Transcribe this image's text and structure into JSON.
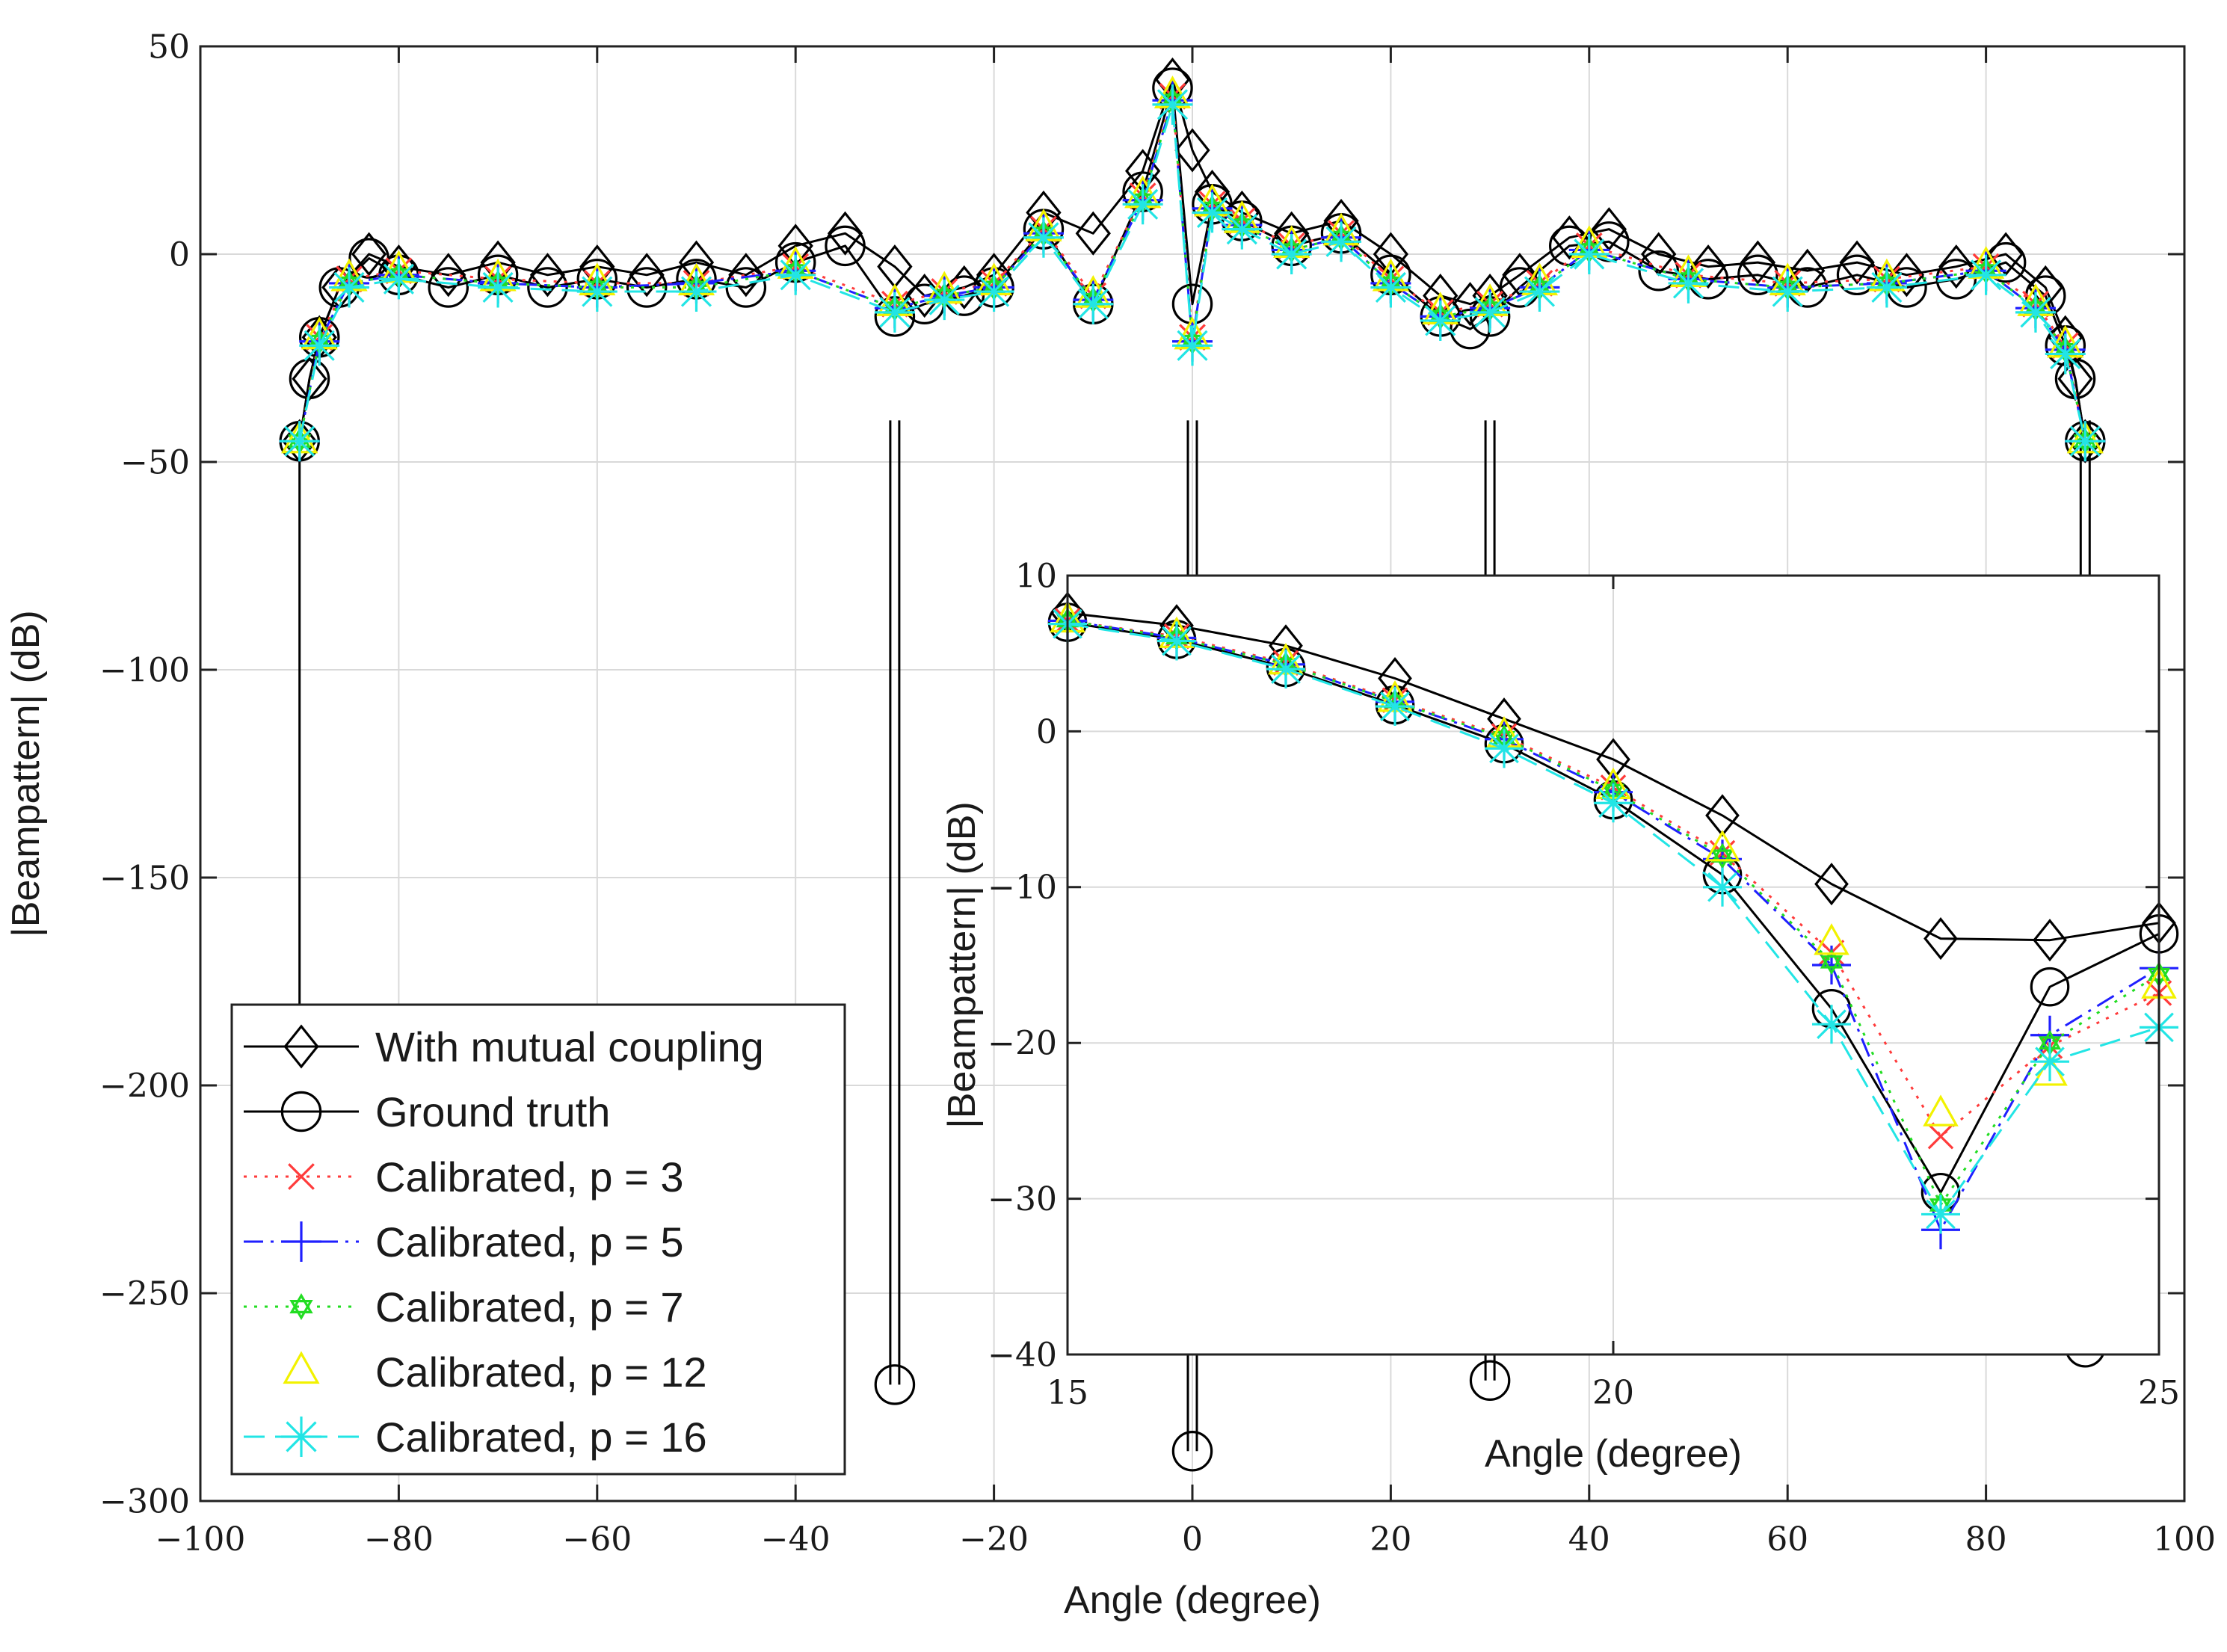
{
  "chart_data": [
    {
      "type": "line",
      "xlabel": "Angle (degree)",
      "ylabel": "|Beampattern| (dB)",
      "xlim": [
        -100,
        100
      ],
      "ylim": [
        -300,
        50
      ],
      "xticks": [
        -100,
        -80,
        -60,
        -40,
        -20,
        0,
        20,
        40,
        60,
        80,
        100
      ],
      "yticks": [
        -300,
        -250,
        -200,
        -150,
        -100,
        -50,
        0,
        50
      ],
      "xtick_labels": [
        "−100",
        "−80",
        "−60",
        "−40",
        "−20",
        "0",
        "20",
        "40",
        "60",
        "80",
        "100"
      ],
      "ytick_labels": [
        "−300",
        "−250",
        "−200",
        "−150",
        "−100",
        "−50",
        "0",
        "50"
      ],
      "grid": true,
      "legend_position": "bottom-left",
      "nulls": [
        {
          "angle": -30,
          "ground_truth_db": -272
        },
        {
          "angle": 0,
          "ground_truth_db": -288
        },
        {
          "angle": 30,
          "ground_truth_db": -271
        },
        {
          "angle": 90,
          "ground_truth_db": -263
        }
      ],
      "series": [
        {
          "name": "With mutual coupling",
          "color": "#000000",
          "marker": "diamond",
          "line": "solid",
          "x": [
            -90,
            -89,
            -88,
            -86,
            -83,
            -80,
            -75,
            -70,
            -65,
            -60,
            -55,
            -50,
            -45,
            -40,
            -35,
            -30,
            -27,
            -23,
            -20,
            -15,
            -10,
            -5,
            -2,
            0,
            2,
            5,
            10,
            15,
            20,
            25,
            28,
            30,
            33,
            38,
            42,
            47,
            52,
            57,
            62,
            67,
            72,
            77,
            82,
            86,
            88,
            89,
            90
          ],
          "y": [
            -45,
            -30,
            -20,
            -8,
            0,
            -3,
            -5,
            -2,
            -5,
            -3,
            -5,
            -2,
            -5,
            2,
            5,
            -3,
            -10,
            -8,
            -5,
            10,
            5,
            20,
            42,
            25,
            15,
            10,
            5,
            8,
            0,
            -10,
            -12,
            -10,
            -5,
            4,
            6,
            0,
            -3,
            -2,
            -4,
            -2,
            -5,
            -3,
            0,
            -8,
            -20,
            -30,
            -45
          ]
        },
        {
          "name": "Ground truth",
          "color": "#000000",
          "marker": "circle",
          "line": "solid",
          "x": [
            -90,
            -89,
            -88,
            -86,
            -83,
            -80,
            -75,
            -70,
            -65,
            -60,
            -55,
            -50,
            -45,
            -40,
            -35,
            -30,
            -27,
            -23,
            -20,
            -15,
            -10,
            -5,
            -2,
            0,
            2,
            5,
            10,
            15,
            20,
            25,
            28,
            30,
            33,
            38,
            42,
            47,
            52,
            57,
            62,
            67,
            72,
            77,
            82,
            86,
            88,
            89,
            90
          ],
          "y": [
            -45,
            -30,
            -20,
            -8,
            -1,
            -5,
            -8,
            -5,
            -8,
            -6,
            -8,
            -6,
            -8,
            -2,
            2,
            -15,
            -12,
            -10,
            -8,
            6,
            -12,
            15,
            40,
            -12,
            12,
            8,
            2,
            5,
            -5,
            -15,
            -18,
            -15,
            -8,
            2,
            3,
            -4,
            -6,
            -5,
            -8,
            -5,
            -8,
            -6,
            -2,
            -10,
            -22,
            -30,
            -45
          ]
        },
        {
          "name": "Calibrated, p = 3",
          "color": "#ff3b3b",
          "marker": "x",
          "line": "dotted",
          "x": [
            -90,
            -88,
            -85,
            -80,
            -70,
            -60,
            -50,
            -40,
            -30,
            -25,
            -20,
            -15,
            -10,
            -5,
            -2,
            0,
            2,
            5,
            10,
            15,
            20,
            25,
            30,
            35,
            40,
            50,
            60,
            70,
            80,
            85,
            88,
            90
          ],
          "y": [
            -45,
            -20,
            -6,
            -4,
            -6,
            -7,
            -7,
            -3,
            -12,
            -9,
            -7,
            6,
            -10,
            14,
            38,
            -20,
            12,
            8,
            2,
            5,
            -6,
            -14,
            -12,
            -7,
            2,
            -5,
            -7,
            -6,
            -3,
            -12,
            -22,
            -45
          ]
        },
        {
          "name": "Calibrated, p = 5",
          "color": "#1f1fff",
          "marker": "plus",
          "line": "dashdot",
          "x": [
            -90,
            -88,
            -85,
            -80,
            -70,
            -60,
            -50,
            -40,
            -30,
            -25,
            -20,
            -15,
            -10,
            -5,
            -2,
            0,
            2,
            5,
            10,
            15,
            20,
            25,
            30,
            35,
            40,
            50,
            60,
            70,
            80,
            85,
            88,
            90
          ],
          "y": [
            -45,
            -21,
            -7,
            -5,
            -7,
            -8,
            -7,
            -4,
            -13,
            -10,
            -8,
            5,
            -11,
            13,
            37,
            -21,
            11,
            7,
            1,
            4,
            -7,
            -15,
            -13,
            -8,
            1,
            -6,
            -8,
            -7,
            -4,
            -13,
            -23,
            -45
          ]
        },
        {
          "name": "Calibrated, p = 7",
          "color": "#22dd22",
          "marker": "hexagram",
          "line": "dotted",
          "x": [
            -90,
            -88,
            -85,
            -80,
            -70,
            -60,
            -50,
            -40,
            -30,
            -25,
            -20,
            -15,
            -10,
            -5,
            -2,
            0,
            2,
            5,
            10,
            15,
            20,
            25,
            30,
            35,
            40,
            50,
            60,
            70,
            80,
            85,
            88,
            90
          ],
          "y": [
            -45,
            -21,
            -7,
            -5,
            -7,
            -8,
            -8,
            -4,
            -13,
            -10,
            -8,
            5,
            -11,
            13,
            37,
            -21,
            11,
            7,
            1,
            4,
            -7,
            -15,
            -13,
            -8,
            1,
            -6,
            -8,
            -7,
            -4,
            -13,
            -23,
            -45
          ]
        },
        {
          "name": "Calibrated, p = 12",
          "color": "#f2f200",
          "marker": "triangle",
          "line": "none",
          "x": [
            -90,
            -88,
            -85,
            -80,
            -70,
            -60,
            -50,
            -40,
            -30,
            -25,
            -20,
            -15,
            -10,
            -5,
            -2,
            0,
            2,
            5,
            10,
            15,
            20,
            25,
            30,
            35,
            40,
            50,
            60,
            70,
            80,
            85,
            88,
            90
          ],
          "y": [
            -45,
            -20,
            -6,
            -4,
            -6,
            -7,
            -7,
            -3,
            -12,
            -9,
            -7,
            6,
            -10,
            14,
            38,
            -20,
            12,
            8,
            2,
            5,
            -6,
            -14,
            -12,
            -7,
            2,
            -5,
            -7,
            -6,
            -3,
            -12,
            -22,
            -45
          ]
        },
        {
          "name": "Calibrated, p = 16",
          "color": "#22e5e5",
          "marker": "asterisk",
          "line": "dashed",
          "x": [
            -90,
            -88,
            -85,
            -80,
            -70,
            -60,
            -50,
            -40,
            -30,
            -25,
            -20,
            -15,
            -10,
            -5,
            -2,
            0,
            2,
            5,
            10,
            15,
            20,
            25,
            30,
            35,
            40,
            50,
            60,
            70,
            80,
            85,
            88,
            90
          ],
          "y": [
            -45,
            -22,
            -8,
            -6,
            -8,
            -9,
            -9,
            -5,
            -14,
            -11,
            -9,
            4,
            -12,
            12,
            36,
            -22,
            10,
            6,
            0,
            3,
            -8,
            -16,
            -14,
            -9,
            0,
            -7,
            -9,
            -8,
            -5,
            -14,
            -24,
            -45
          ]
        }
      ]
    },
    {
      "type": "line",
      "inset": true,
      "xlabel": "Angle (degree)",
      "ylabel": "|Beampattern| (dB)",
      "xlim": [
        15,
        25
      ],
      "ylim": [
        -40,
        10
      ],
      "xticks": [
        15,
        20,
        25
      ],
      "yticks": [
        -40,
        -30,
        -20,
        -10,
        0,
        10
      ],
      "xtick_labels": [
        "15",
        "20",
        "25"
      ],
      "ytick_labels": [
        "−40",
        "−30",
        "−20",
        "−10",
        "0",
        "10"
      ],
      "grid": true,
      "series": [
        {
          "name": "With mutual coupling",
          "color": "#000000",
          "marker": "diamond",
          "line": "solid",
          "x": [
            15,
            16,
            17,
            18,
            19,
            20,
            21,
            22,
            23,
            24,
            25
          ],
          "y": [
            7.6,
            6.8,
            5.5,
            3.4,
            0.8,
            -1.8,
            -5.4,
            -9.8,
            -13.3,
            -13.4,
            -12.3
          ]
        },
        {
          "name": "Ground truth",
          "color": "#000000",
          "marker": "circle",
          "line": "solid",
          "x": [
            15,
            16,
            17,
            18,
            19,
            20,
            21,
            22,
            23,
            24,
            25
          ],
          "y": [
            7.0,
            5.9,
            4.1,
            1.7,
            -0.8,
            -4.4,
            -9.2,
            -17.8,
            -29.6,
            -16.4,
            -13.0
          ]
        },
        {
          "name": "Calibrated, p = 3",
          "color": "#ff3b3b",
          "marker": "x",
          "line": "dotted",
          "x": [
            15,
            16,
            17,
            18,
            19,
            20,
            21,
            22,
            23,
            24,
            25
          ],
          "y": [
            7.1,
            6.1,
            4.4,
            2.0,
            -0.3,
            -3.6,
            -7.8,
            -14.2,
            -26.0,
            -20.2,
            -16.8
          ]
        },
        {
          "name": "Calibrated, p = 5",
          "color": "#1f1fff",
          "marker": "plus",
          "line": "dashdot",
          "x": [
            15,
            16,
            17,
            18,
            19,
            20,
            21,
            22,
            23,
            24,
            25
          ],
          "y": [
            7.1,
            6.0,
            4.3,
            1.9,
            -0.5,
            -3.9,
            -8.2,
            -15.0,
            -32.0,
            -19.5,
            -15.2
          ]
        },
        {
          "name": "Calibrated, p = 7",
          "color": "#22dd22",
          "marker": "hexagram",
          "line": "dotted",
          "x": [
            15,
            16,
            17,
            18,
            19,
            20,
            21,
            22,
            23,
            24,
            25
          ],
          "y": [
            7.1,
            6.0,
            4.3,
            1.9,
            -0.4,
            -3.8,
            -8.0,
            -14.8,
            -30.4,
            -20.0,
            -15.6
          ]
        },
        {
          "name": "Calibrated, p = 12",
          "color": "#f2f200",
          "marker": "triangle",
          "line": "none",
          "x": [
            15,
            16,
            17,
            18,
            19,
            20,
            21,
            22,
            23,
            24,
            25
          ],
          "y": [
            7.1,
            6.1,
            4.4,
            2.0,
            -0.3,
            -3.6,
            -7.6,
            -13.6,
            -24.6,
            -22.0,
            -16.4
          ]
        },
        {
          "name": "Calibrated, p = 16",
          "color": "#22e5e5",
          "marker": "asterisk",
          "line": "dashed",
          "x": [
            15,
            16,
            17,
            18,
            19,
            20,
            21,
            22,
            23,
            24,
            25
          ],
          "y": [
            6.9,
            5.8,
            4.0,
            1.6,
            -1.1,
            -4.6,
            -10.0,
            -18.8,
            -31.0,
            -21.2,
            -19.0
          ]
        }
      ]
    }
  ]
}
